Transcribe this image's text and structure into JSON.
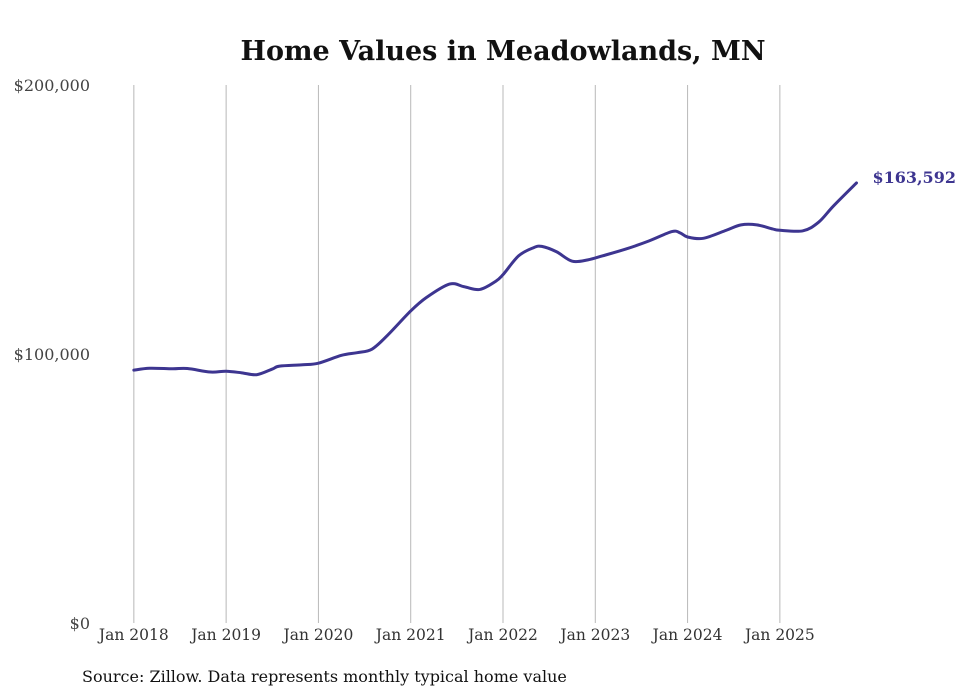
{
  "chart_data": {
    "type": "line",
    "title": "Home Values in Meadowlands, MN",
    "xlabel": "",
    "ylabel": "",
    "ylim": [
      0,
      200000
    ],
    "y_ticks": [
      {
        "value": 0,
        "label": "$0"
      },
      {
        "value": 100000,
        "label": "$100,000"
      },
      {
        "value": 200000,
        "label": "$200,000"
      }
    ],
    "x_ticks": [
      {
        "value": 2018,
        "label": "Jan 2018"
      },
      {
        "value": 2019,
        "label": "Jan 2019"
      },
      {
        "value": 2020,
        "label": "Jan 2020"
      },
      {
        "value": 2021,
        "label": "Jan 2021"
      },
      {
        "value": 2022,
        "label": "Jan 2022"
      },
      {
        "value": 2023,
        "label": "Jan 2023"
      },
      {
        "value": 2024,
        "label": "Jan 2024"
      },
      {
        "value": 2025,
        "label": "Jan 2025"
      }
    ],
    "xlim": [
      2017.85,
      2026.15
    ],
    "grid": "vertical",
    "series": [
      {
        "name": "Typical home value",
        "color": "#3d3590",
        "x": [
          2018.0,
          2018.17,
          2018.42,
          2018.58,
          2018.83,
          2019.0,
          2019.17,
          2019.33,
          2019.5,
          2019.58,
          2019.83,
          2020.0,
          2020.25,
          2020.42,
          2020.58,
          2020.75,
          2021.0,
          2021.17,
          2021.42,
          2021.58,
          2021.75,
          2021.92,
          2022.0,
          2022.17,
          2022.33,
          2022.42,
          2022.58,
          2022.75,
          2022.92,
          2023.08,
          2023.33,
          2023.58,
          2023.83,
          2023.92,
          2024.0,
          2024.17,
          2024.42,
          2024.58,
          2024.75,
          2024.92,
          2025.0,
          2025.25,
          2025.42,
          2025.58,
          2025.83
        ],
        "values": [
          94000,
          94700,
          94500,
          94600,
          93300,
          93600,
          93000,
          92300,
          94400,
          95500,
          96000,
          96600,
          99500,
          100500,
          101800,
          107000,
          116000,
          121000,
          126000,
          125000,
          124000,
          127000,
          129500,
          136500,
          139500,
          140000,
          138000,
          134500,
          135000,
          136500,
          139000,
          142000,
          145500,
          145000,
          143500,
          143000,
          146000,
          148000,
          148000,
          146500,
          146000,
          145800,
          149000,
          155000,
          163592
        ]
      }
    ],
    "annotations": [
      {
        "text": "$163,592",
        "x": 2025.83,
        "y": 163592
      }
    ]
  },
  "source_note": "Source: Zillow. Data represents monthly typical home value"
}
